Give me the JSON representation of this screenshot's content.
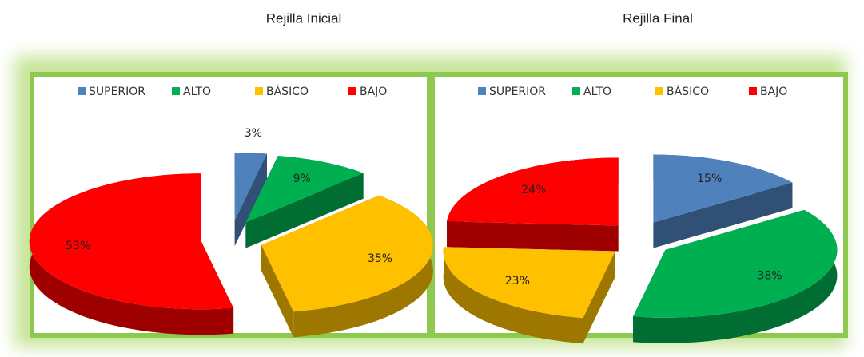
{
  "chart_data": [
    {
      "type": "pie",
      "title": "Rejilla Inicial",
      "categories": [
        "SUPERIOR",
        "ALTO",
        "BÁSICO",
        "BAJO"
      ],
      "values": [
        3,
        9,
        35,
        53
      ],
      "value_labels": [
        "3%",
        "9%",
        "35%",
        "53%"
      ],
      "colors": [
        "#4f81bd",
        "#00b050",
        "#ffc000",
        "#ff0000"
      ],
      "legend": "top"
    },
    {
      "type": "pie",
      "title": "Rejilla Final",
      "categories": [
        "SUPERIOR",
        "ALTO",
        "BÁSICO",
        "BAJO"
      ],
      "values": [
        15,
        38,
        23,
        24
      ],
      "value_labels": [
        "15%",
        "38%",
        "23%",
        "24%"
      ],
      "colors": [
        "#4f81bd",
        "#00b050",
        "#ffc000",
        "#ff0000"
      ],
      "legend": "top"
    }
  ]
}
